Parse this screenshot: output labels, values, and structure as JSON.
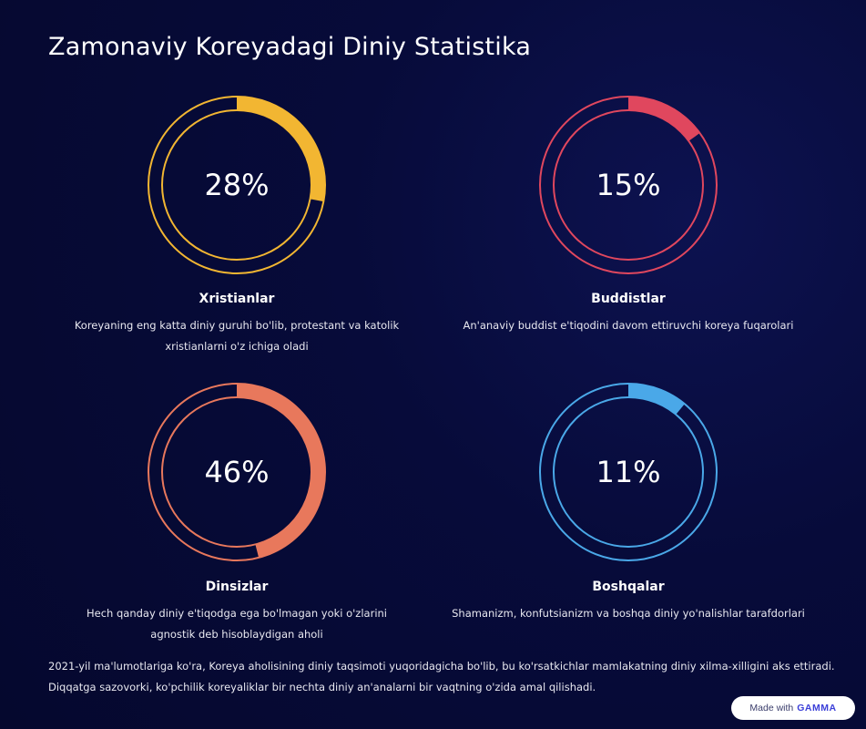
{
  "page": {
    "title": "Zamonaviy Koreyadagi Diniy Statistika",
    "footer": "2021-yil ma'lumotlariga ko'ra, Koreya aholisining diniy taqsimoti yuqoridagicha bo'lib, bu ko'rsatkichlar mamlakatning diniy xilma-xilligini aks ettiradi. Diqqatga sazovorki, ko'pchilik koreyaliklar bir nechta diniy an'analarni bir vaqtning o'zida amal qilishadi."
  },
  "stats": [
    {
      "percent_label": "28%",
      "value": 28,
      "color": "#f2b632",
      "label": "Xristianlar",
      "description": "Koreyaning eng katta diniy guruhi bo'lib, protestant va katolik xristianlarni o'z ichiga oladi"
    },
    {
      "percent_label": "15%",
      "value": 15,
      "color": "#e0475e",
      "label": "Buddistlar",
      "description": "An'anaviy buddist e'tiqodini davom ettiruvchi koreya fuqarolari"
    },
    {
      "percent_label": "46%",
      "value": 46,
      "color": "#e8785c",
      "label": "Dinsizlar",
      "description": "Hech qanday diniy e'tiqodga ega bo'lmagan yoki o'zlarini agnostik deb hisoblaydigan aholi"
    },
    {
      "percent_label": "11%",
      "value": 11,
      "color": "#4aa8e8",
      "label": "Boshqalar",
      "description": "Shamanizm, konfutsianizm va boshqa diniy yo'nalishlar tarafdorlari"
    }
  ],
  "badge": {
    "prefix": "Made with",
    "brand": "GAMMA"
  }
}
